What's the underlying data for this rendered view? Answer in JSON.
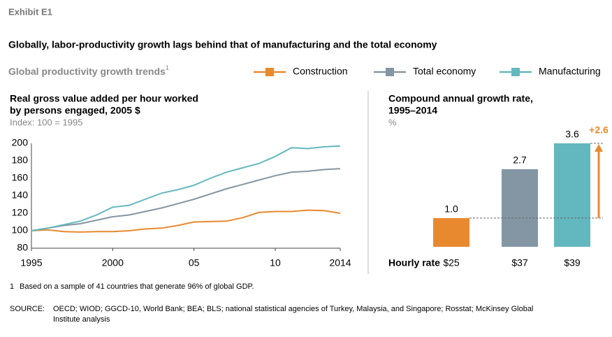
{
  "header": {
    "exhibit": "Exhibit E1",
    "title": "Globally, labor-productivity growth lags behind that of manufacturing and the total economy",
    "subtitle": "Global productivity growth trends",
    "subtitle_note": "1"
  },
  "chart_data": [
    {
      "type": "line",
      "title_lines": [
        "Real gross value added per hour worked",
        "by persons engaged, 2005 $"
      ],
      "subtitle": "Index: 100 = 1995",
      "x": [
        1995,
        1996,
        1997,
        1998,
        1999,
        2000,
        2001,
        2002,
        2003,
        2004,
        2005,
        2006,
        2007,
        2008,
        2009,
        2010,
        2011,
        2012,
        2013,
        2014
      ],
      "series": [
        {
          "name": "Construction",
          "color": "#e8892f",
          "values": [
            100,
            101,
            99,
            98.5,
            99,
            99,
            100,
            102,
            103,
            106,
            110,
            110.5,
            111,
            115,
            121,
            122,
            122,
            123.5,
            123,
            120
          ]
        },
        {
          "name": "Total economy",
          "color": "#8496a3",
          "values": [
            100,
            103,
            106,
            108,
            112,
            116,
            118,
            122,
            126,
            131,
            136,
            142,
            148,
            153,
            158,
            163,
            167,
            168,
            170,
            171
          ]
        },
        {
          "name": "Manufacturing",
          "color": "#63b7be",
          "values": [
            100,
            103,
            107,
            111,
            118,
            127,
            129,
            136,
            143,
            147,
            152,
            160,
            167,
            172,
            177,
            185,
            195,
            194,
            196,
            197
          ]
        }
      ],
      "xlim": [
        1995,
        2014
      ],
      "xticks": [
        1995,
        2000,
        {
          "value": 2005,
          "label": "05"
        },
        {
          "value": 2010,
          "label": "10"
        },
        2014
      ],
      "ylim": [
        80,
        200
      ],
      "yticks": [
        80,
        100,
        120,
        140,
        160,
        180,
        200
      ]
    },
    {
      "type": "bar",
      "title_lines": [
        "Compound annual growth rate,",
        "1995–2014"
      ],
      "unit": "%",
      "x_label": "Hourly rate",
      "categories": [
        "$25",
        "$37",
        "$39"
      ],
      "values": [
        1.0,
        2.7,
        3.6
      ],
      "value_labels": [
        "1.0",
        "2.7",
        "3.6"
      ],
      "colors": [
        "#e8892f",
        "#8496a3",
        "#63b7be"
      ],
      "annotation": "+2.6"
    }
  ],
  "footnote": {
    "marker": "1",
    "text": "Based on a sample of 41 countries that generate 96% of global GDP."
  },
  "source": {
    "label": "SOURCE:",
    "lines": [
      "OECD; WIOD; GGCD-10, World Bank; BEA; BLS; national statistical agencies of Turkey, Malaysia, and Singapore; Rosstat; McKinsey Global",
      "Institute analysis"
    ]
  }
}
